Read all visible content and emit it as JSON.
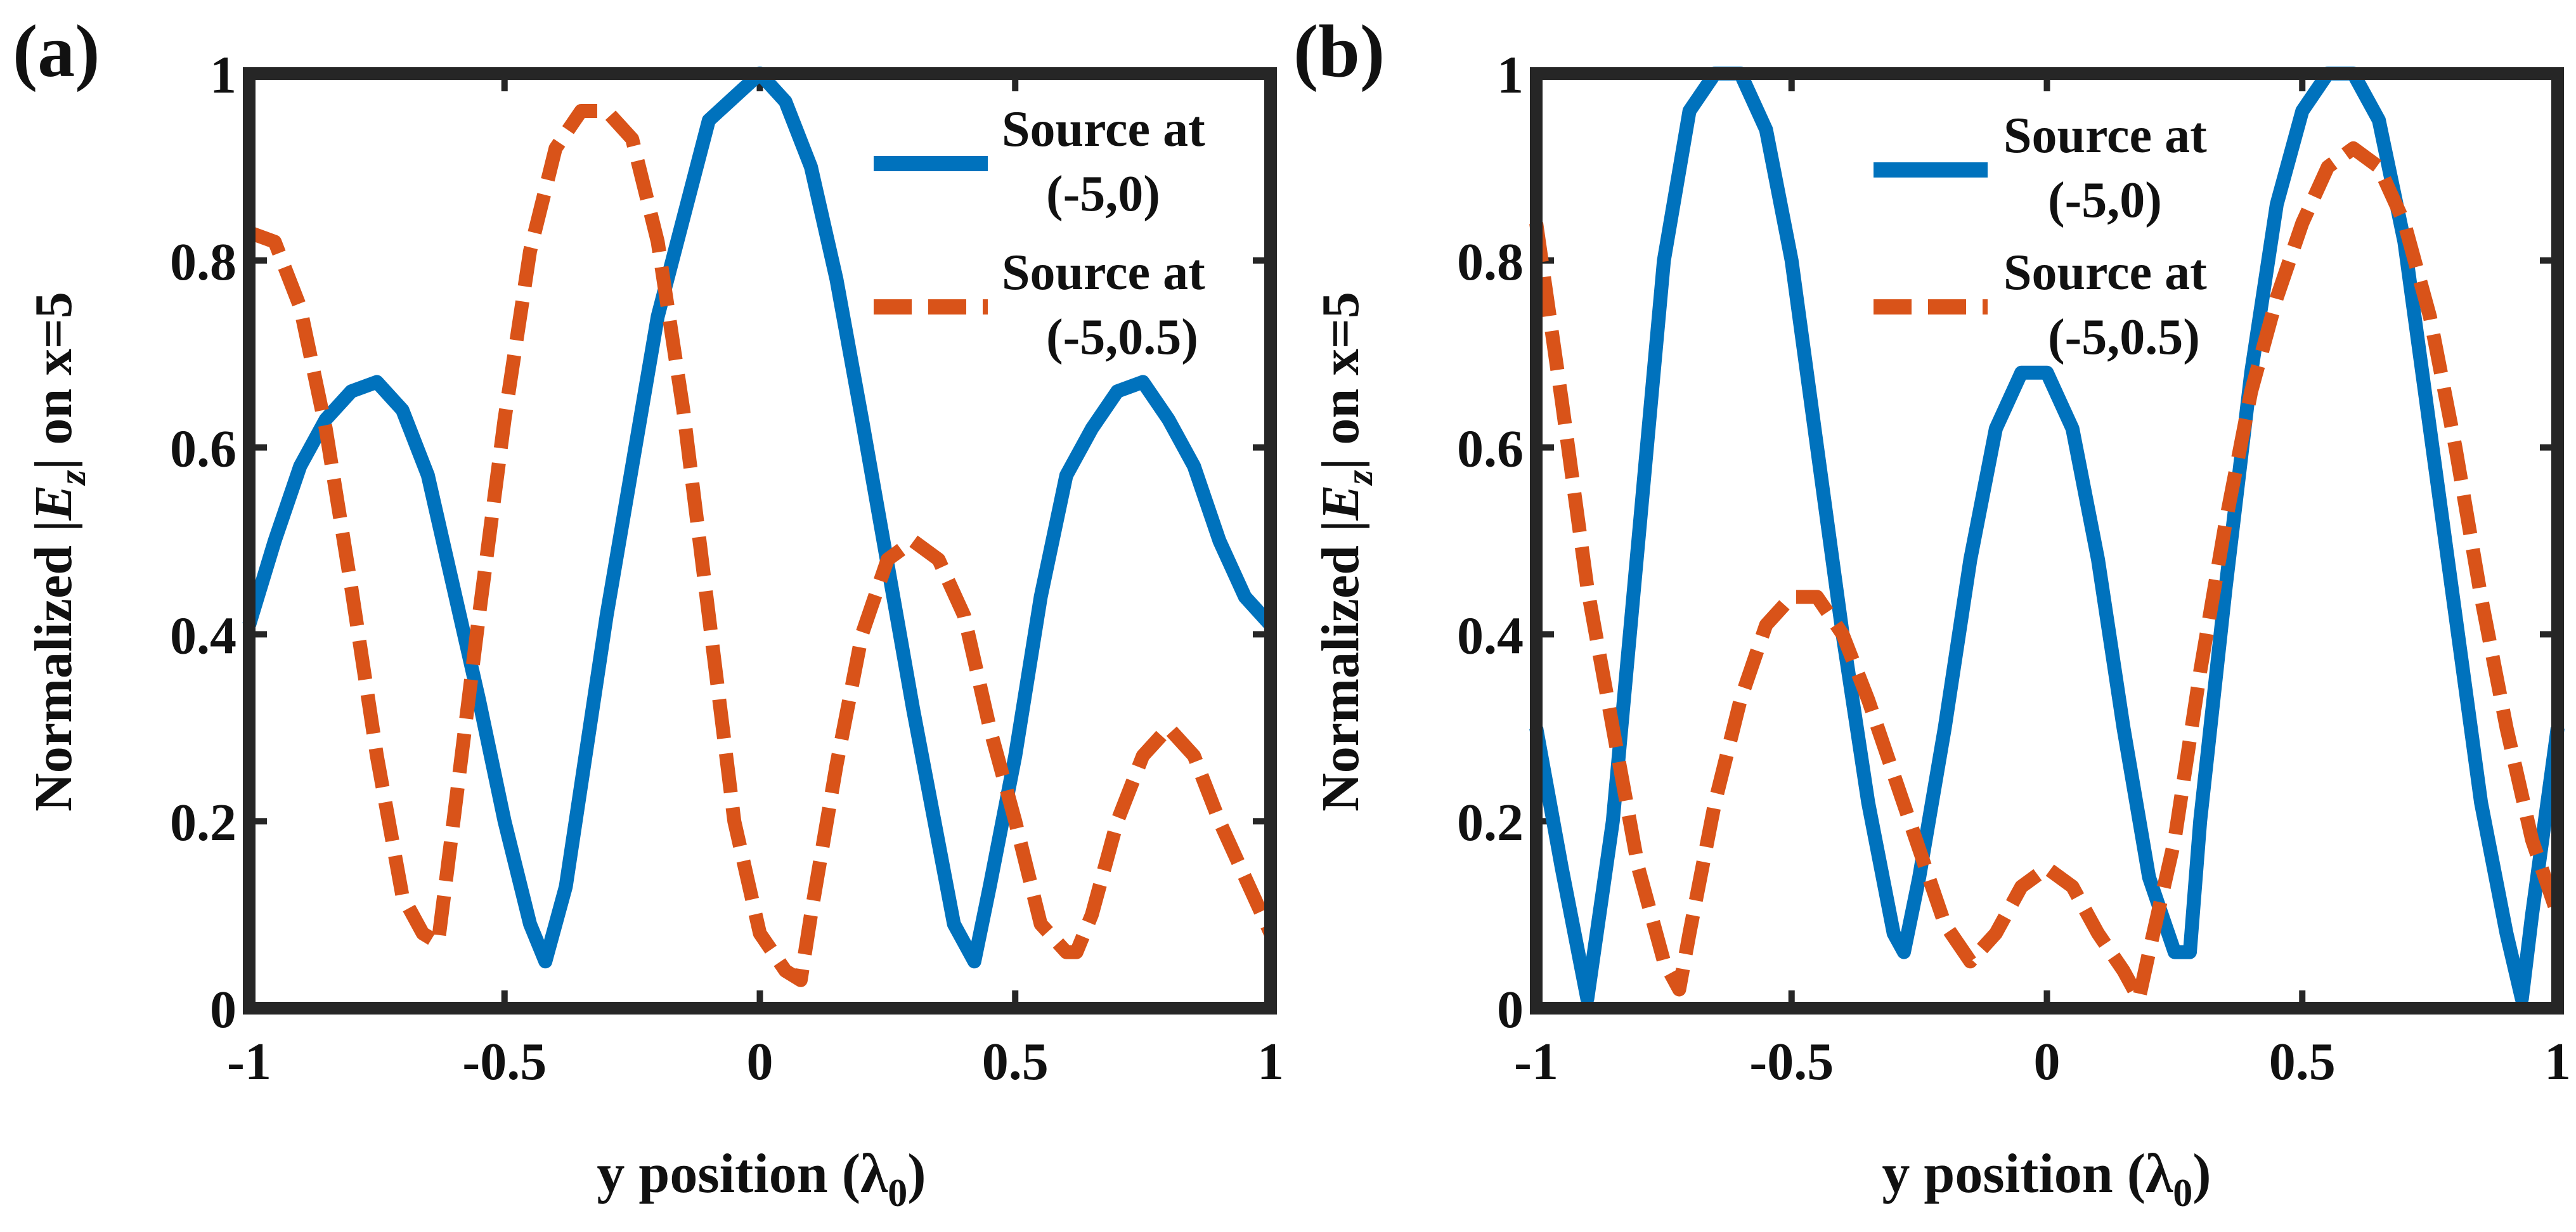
{
  "colors": {
    "source_a": "#0072BD",
    "source_b": "#D95319",
    "axes": "#262626"
  },
  "chart_data": [
    {
      "panel_label": "(a)",
      "type": "line",
      "xlabel": "y position (λ",
      "xlabel_sub": "0",
      "xlabel_close": ")",
      "ylabel_pre": "Normalized |",
      "ylabel_var": "E",
      "ylabel_sub": "z",
      "ylabel_post": "| on x=5",
      "xlim": [
        -1,
        1
      ],
      "ylim": [
        0,
        1
      ],
      "xticks": [
        "-1",
        "-0.5",
        "0",
        "0.5",
        "1"
      ],
      "yticks": [
        "0",
        "0.2",
        "0.4",
        "0.6",
        "0.8",
        "1"
      ],
      "legend": [
        {
          "line1": "Source at",
          "line2": "(-5,0)"
        },
        {
          "line1": "Source at",
          "line2": "(-5,0.5)"
        }
      ],
      "series": [
        {
          "name": "Source at (-5,0)",
          "style": "solid",
          "x": [
            -1,
            -0.95,
            -0.9,
            -0.85,
            -0.8,
            -0.75,
            -0.7,
            -0.65,
            -0.6,
            -0.55,
            -0.5,
            -0.45,
            -0.42,
            -0.38,
            -0.3,
            -0.2,
            -0.1,
            0,
            0.05,
            0.1,
            0.15,
            0.2,
            0.3,
            0.38,
            0.42,
            0.45,
            0.5,
            0.55,
            0.6,
            0.65,
            0.7,
            0.75,
            0.8,
            0.85,
            0.9,
            0.95,
            1
          ],
          "values": [
            0.41,
            0.5,
            0.58,
            0.63,
            0.66,
            0.67,
            0.64,
            0.57,
            0.45,
            0.33,
            0.2,
            0.09,
            0.05,
            0.13,
            0.42,
            0.74,
            0.95,
            1.0,
            0.97,
            0.9,
            0.78,
            0.63,
            0.32,
            0.09,
            0.05,
            0.13,
            0.27,
            0.44,
            0.57,
            0.62,
            0.66,
            0.67,
            0.63,
            0.58,
            0.5,
            0.44,
            0.41
          ]
        },
        {
          "name": "Source at (-5,0.5)",
          "style": "dashed",
          "x": [
            -1,
            -0.95,
            -0.9,
            -0.85,
            -0.8,
            -0.75,
            -0.7,
            -0.66,
            -0.63,
            -0.6,
            -0.55,
            -0.5,
            -0.45,
            -0.4,
            -0.35,
            -0.3,
            -0.25,
            -0.2,
            -0.15,
            -0.1,
            -0.05,
            0,
            0.05,
            0.08,
            0.1,
            0.15,
            0.2,
            0.25,
            0.3,
            0.35,
            0.4,
            0.45,
            0.5,
            0.55,
            0.6,
            0.62,
            0.65,
            0.7,
            0.75,
            0.8,
            0.85,
            0.9,
            0.95,
            1
          ],
          "values": [
            0.83,
            0.82,
            0.75,
            0.62,
            0.45,
            0.27,
            0.12,
            0.08,
            0.07,
            0.2,
            0.42,
            0.63,
            0.81,
            0.92,
            0.96,
            0.96,
            0.93,
            0.82,
            0.64,
            0.42,
            0.2,
            0.08,
            0.04,
            0.03,
            0.1,
            0.26,
            0.4,
            0.48,
            0.5,
            0.48,
            0.42,
            0.3,
            0.2,
            0.09,
            0.06,
            0.06,
            0.1,
            0.2,
            0.27,
            0.3,
            0.27,
            0.2,
            0.14,
            0.08
          ]
        }
      ]
    },
    {
      "panel_label": "(b)",
      "type": "line",
      "xlabel": "y position (λ",
      "xlabel_sub": "0",
      "xlabel_close": ")",
      "ylabel_pre": "Normalized |",
      "ylabel_var": "E",
      "ylabel_sub": "z",
      "ylabel_post": "| on x=5",
      "xlim": [
        -1,
        1
      ],
      "ylim": [
        0,
        1
      ],
      "xticks": [
        "-1",
        "-0.5",
        "0",
        "0.5",
        "1"
      ],
      "yticks": [
        "0",
        "0.2",
        "0.4",
        "0.6",
        "0.8",
        "1"
      ],
      "legend": [
        {
          "line1": "Source at",
          "line2": "(-5,0)"
        },
        {
          "line1": "Source at",
          "line2": "(-5,0.5)"
        }
      ],
      "series": [
        {
          "name": "Source at (-5,0)",
          "style": "solid",
          "x": [
            -1,
            -0.95,
            -0.9,
            -0.85,
            -0.8,
            -0.75,
            -0.7,
            -0.65,
            -0.6,
            -0.55,
            -0.5,
            -0.45,
            -0.4,
            -0.35,
            -0.3,
            -0.28,
            -0.25,
            -0.2,
            -0.15,
            -0.1,
            -0.05,
            0,
            0.05,
            0.1,
            0.15,
            0.2,
            0.25,
            0.28,
            0.3,
            0.35,
            0.4,
            0.45,
            0.5,
            0.55,
            0.6,
            0.65,
            0.7,
            0.75,
            0.8,
            0.85,
            0.9,
            0.93,
            0.95,
            1
          ],
          "values": [
            0.3,
            0.15,
            0.01,
            0.2,
            0.5,
            0.8,
            0.96,
            1.0,
            1.0,
            0.94,
            0.8,
            0.6,
            0.4,
            0.22,
            0.08,
            0.06,
            0.14,
            0.3,
            0.48,
            0.62,
            0.68,
            0.68,
            0.62,
            0.48,
            0.3,
            0.14,
            0.06,
            0.06,
            0.2,
            0.45,
            0.68,
            0.86,
            0.96,
            1.0,
            1.0,
            0.95,
            0.82,
            0.62,
            0.42,
            0.22,
            0.08,
            0.01,
            0.1,
            0.3
          ]
        },
        {
          "name": "Source at (-5,0.5)",
          "style": "dashed",
          "x": [
            -1,
            -0.95,
            -0.9,
            -0.85,
            -0.8,
            -0.75,
            -0.72,
            -0.7,
            -0.65,
            -0.6,
            -0.55,
            -0.5,
            -0.45,
            -0.4,
            -0.35,
            -0.3,
            -0.25,
            -0.2,
            -0.15,
            -0.1,
            -0.05,
            0,
            0.05,
            0.1,
            0.15,
            0.18,
            0.2,
            0.25,
            0.3,
            0.35,
            0.4,
            0.45,
            0.5,
            0.55,
            0.6,
            0.65,
            0.7,
            0.75,
            0.8,
            0.85,
            0.9,
            0.95,
            1
          ],
          "values": [
            0.84,
            0.65,
            0.45,
            0.3,
            0.15,
            0.05,
            0.02,
            0.08,
            0.22,
            0.33,
            0.41,
            0.44,
            0.44,
            0.4,
            0.33,
            0.25,
            0.17,
            0.09,
            0.05,
            0.08,
            0.13,
            0.15,
            0.13,
            0.08,
            0.04,
            0.01,
            0.06,
            0.18,
            0.36,
            0.52,
            0.66,
            0.76,
            0.84,
            0.9,
            0.92,
            0.9,
            0.84,
            0.74,
            0.6,
            0.44,
            0.3,
            0.18,
            0.1
          ]
        }
      ]
    }
  ]
}
